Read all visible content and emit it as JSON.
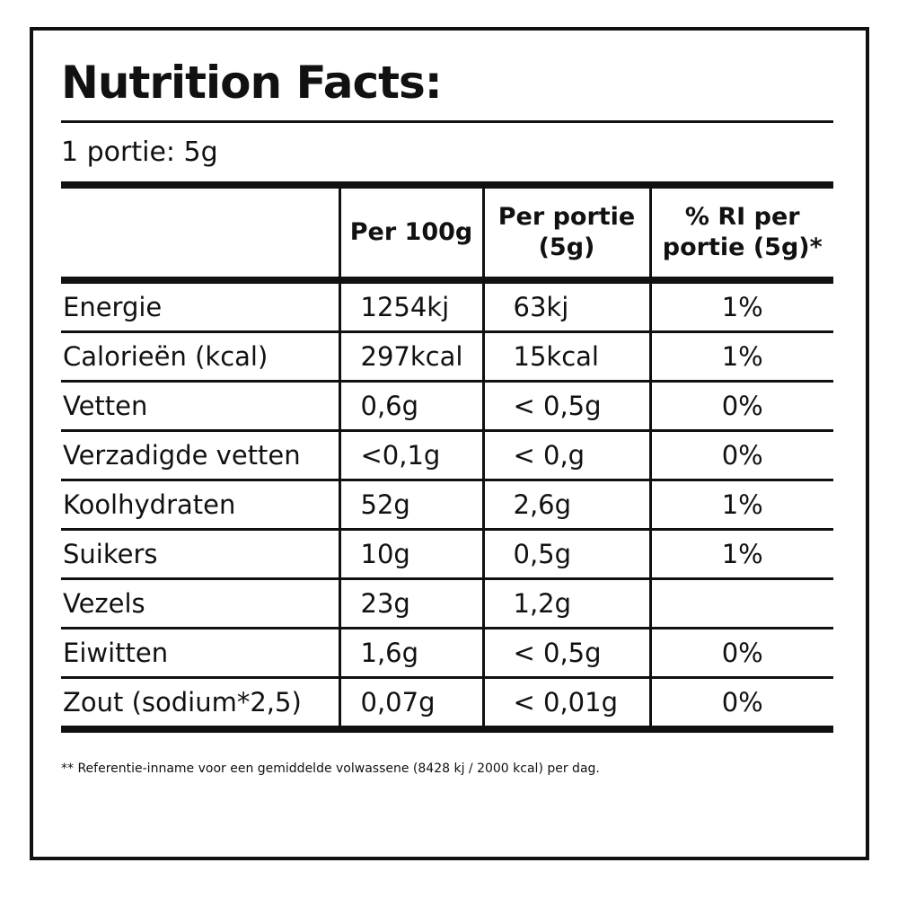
{
  "title": "Nutrition Facts:",
  "serving": "1 portie: 5g",
  "columns": {
    "per100": "Per 100g",
    "perportion": "Per portie (5g)",
    "ri": "% RI per portie (5g)*"
  },
  "rows": [
    {
      "label": "Energie",
      "per100": "1254kj",
      "perportion": "63kj",
      "ri": "1%"
    },
    {
      "label": "Calorieën (kcal)",
      "per100": "297kcal",
      "perportion": "15kcal",
      "ri": "1%"
    },
    {
      "label": "Vetten",
      "per100": "0,6g",
      "perportion": "< 0,5g",
      "ri": "0%"
    },
    {
      "label": "Verzadigde vetten",
      "per100": "<0,1g",
      "perportion": "< 0,g",
      "ri": "0%"
    },
    {
      "label": "Koolhydraten",
      "per100": "52g",
      "perportion": "2,6g",
      "ri": "1%"
    },
    {
      "label": "Suikers",
      "per100": "10g",
      "perportion": "0,5g",
      "ri": "1%"
    },
    {
      "label": "Vezels",
      "per100": "23g",
      "perportion": "1,2g",
      "ri": ""
    },
    {
      "label": "Eiwitten",
      "per100": "1,6g",
      "perportion": "< 0,5g",
      "ri": "0%"
    },
    {
      "label": "Zout (sodium*2,5)",
      "per100": "0,07g",
      "perportion": "< 0,01g",
      "ri": "0%"
    }
  ],
  "footnote": "** Referentie-inname voor een gemiddelde volwassene (8428 kj / 2000 kcal) per dag."
}
